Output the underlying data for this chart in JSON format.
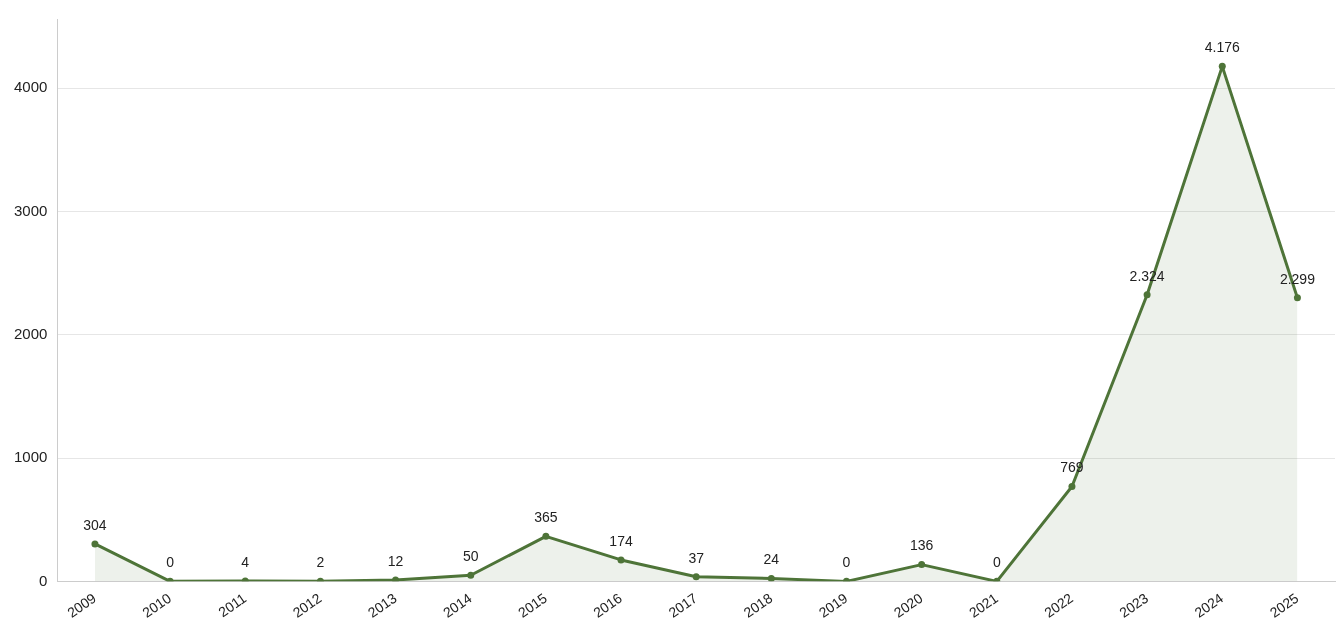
{
  "chart_data": {
    "type": "area",
    "categories": [
      "2009",
      "2010",
      "2011",
      "2012",
      "2013",
      "2014",
      "2015",
      "2016",
      "2017",
      "2018",
      "2019",
      "2020",
      "2021",
      "2022",
      "2023",
      "2024",
      "2025"
    ],
    "values": [
      304,
      0,
      4,
      2,
      12,
      50,
      365,
      174,
      37,
      24,
      0,
      136,
      0,
      769,
      2324,
      4176,
      2299
    ],
    "value_labels": [
      "304",
      "0",
      "4",
      "2",
      "12",
      "50",
      "365",
      "174",
      "37",
      "24",
      "0",
      "136",
      "0",
      "769",
      "2.324",
      "4.176",
      "2.299"
    ],
    "color": "#4e7438",
    "ylim": [
      0,
      4560
    ],
    "yticks": [
      0,
      1000,
      2000,
      3000,
      4000
    ],
    "grid": "y",
    "legend": false,
    "marker": "circle"
  }
}
